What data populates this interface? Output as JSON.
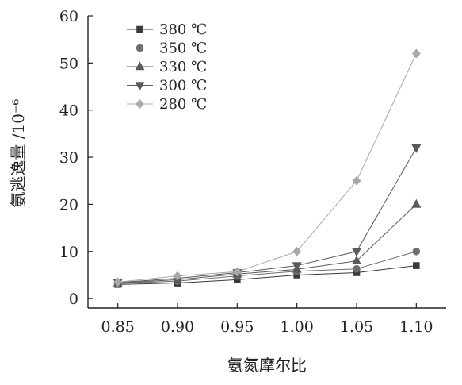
{
  "chart_data": {
    "type": "line",
    "title": "",
    "xlabel": "氨氮摩尔比",
    "ylabel": "氨逃逸量 /10⁻⁶",
    "x": [
      0.85,
      0.9,
      0.95,
      1.0,
      1.05,
      1.1
    ],
    "x_tick_labels": [
      "0.85",
      "0.90",
      "0.95",
      "1.00",
      "1.05",
      "1.10"
    ],
    "xlim": [
      0.825,
      1.125
    ],
    "ylim": [
      -2,
      60
    ],
    "y_ticks": [
      0,
      10,
      20,
      30,
      40,
      50,
      60
    ],
    "y_tick_labels": [
      "0",
      "10",
      "20",
      "30",
      "40",
      "50",
      "60"
    ],
    "grid": false,
    "legend_position": "top-left",
    "series": [
      {
        "name": "380 ℃",
        "marker": "square",
        "color": "#3a3a3a",
        "values": [
          3.0,
          3.3,
          4.0,
          5.0,
          5.5,
          7.0
        ]
      },
      {
        "name": "350 ℃",
        "marker": "circle",
        "color": "#6e6e6e",
        "values": [
          3.2,
          3.7,
          4.8,
          5.8,
          6.3,
          10.0
        ]
      },
      {
        "name": "330 ℃",
        "marker": "triangle-up",
        "color": "#5a5a5a",
        "values": [
          3.3,
          4.0,
          5.2,
          6.2,
          8.0,
          20.0
        ]
      },
      {
        "name": "300 ℃",
        "marker": "triangle-down",
        "color": "#5a5a5a",
        "values": [
          3.4,
          4.3,
          5.5,
          7.0,
          10.0,
          32.0
        ]
      },
      {
        "name": "280 ℃",
        "marker": "diamond",
        "color": "#a8a8a8",
        "values": [
          3.5,
          4.8,
          5.7,
          10.0,
          25.0,
          52.0
        ]
      }
    ]
  }
}
